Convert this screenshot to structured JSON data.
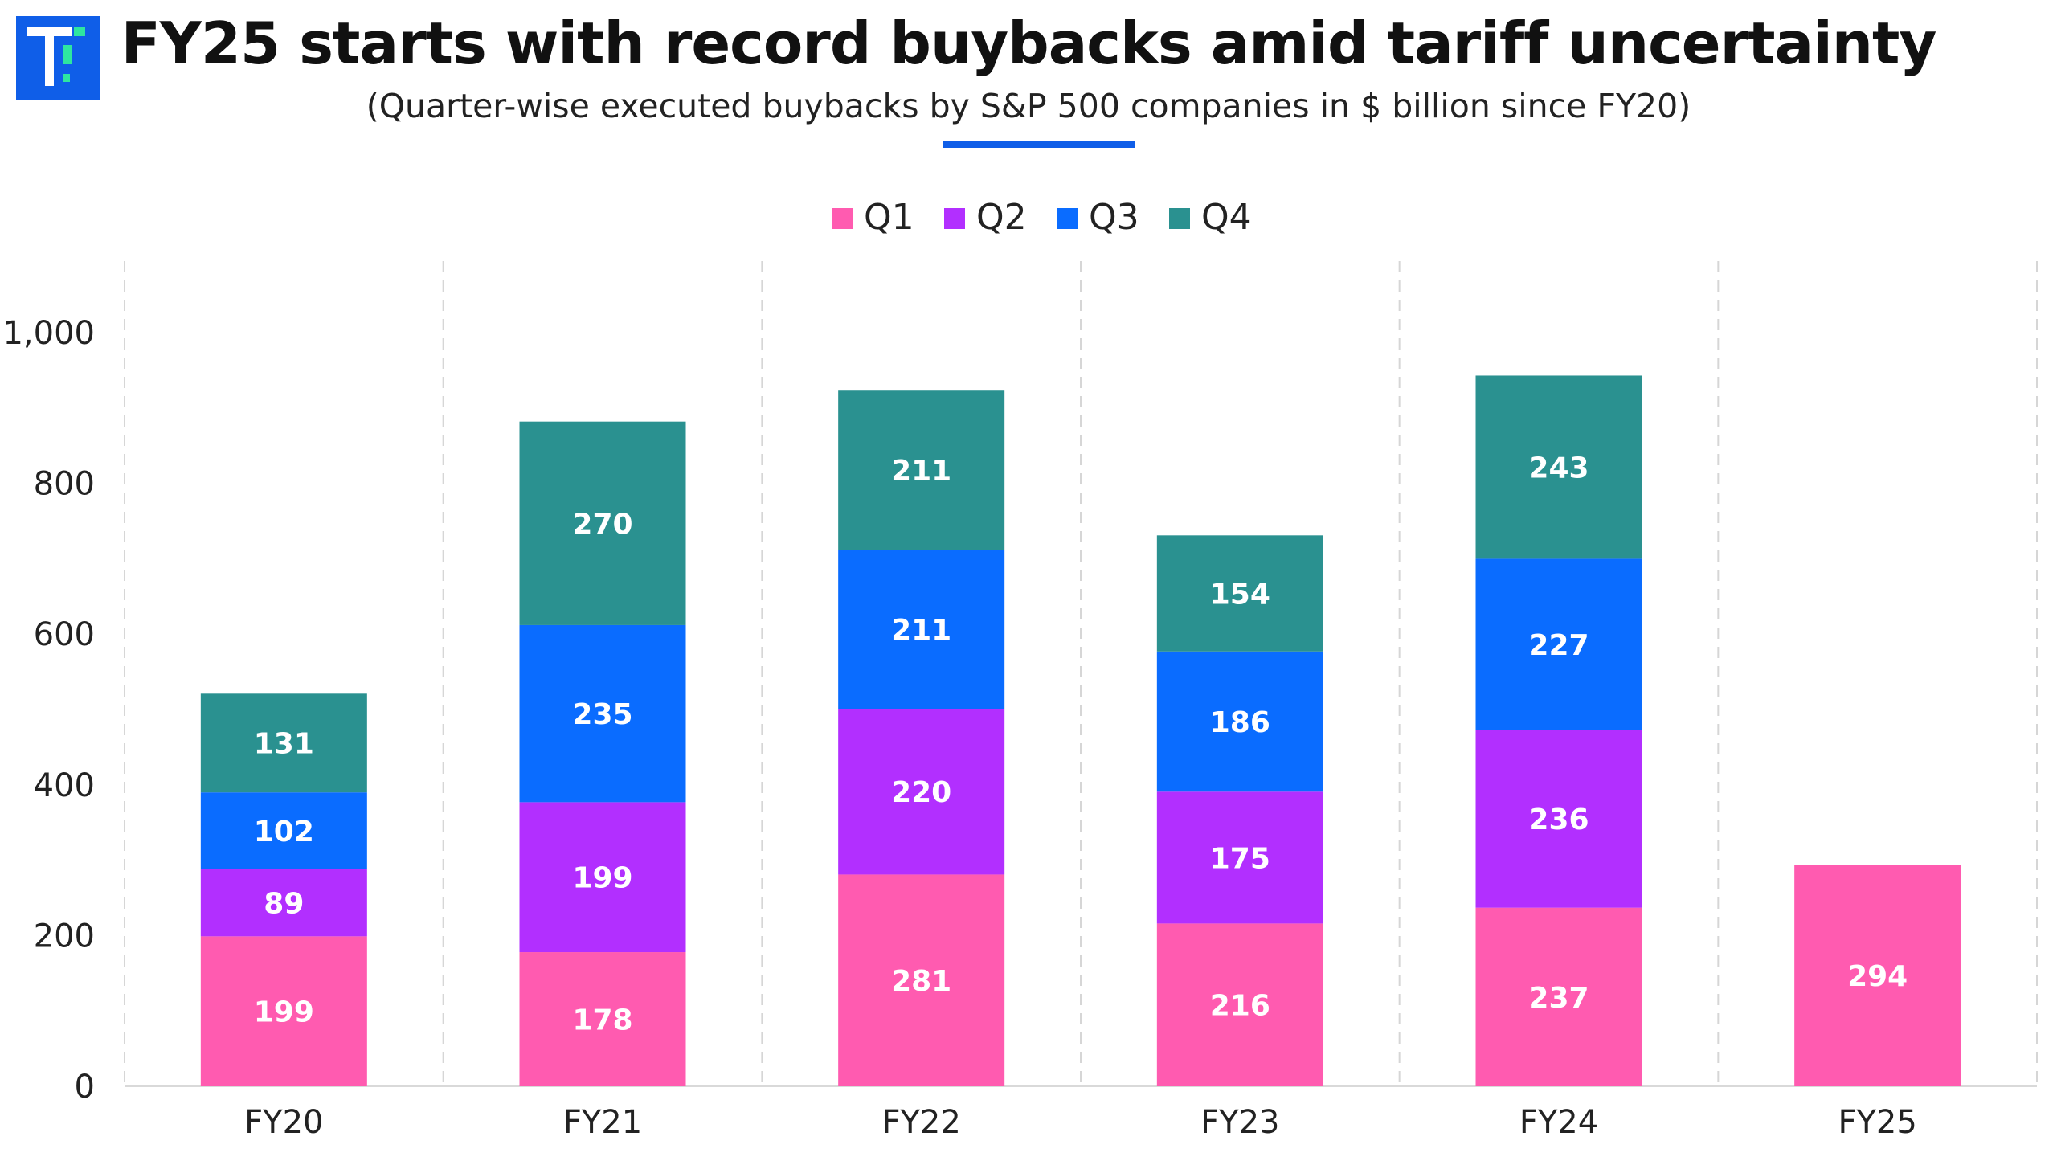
{
  "header": {
    "title": "FY25 starts with record buybacks amid tariff uncertainty",
    "subtitle": "(Quarter-wise executed buybacks by S&P 500 companies in $ billion since FY20)",
    "logo_icon": "brand-logo-icon",
    "accent_color": "#0f5ee8"
  },
  "chart_data": {
    "type": "bar",
    "stacked": true,
    "title": "FY25 starts with record buybacks amid tariff uncertainty",
    "subtitle": "(Quarter-wise executed buybacks by S&P 500 companies in $ billion since FY20)",
    "categories": [
      "FY20",
      "FY21",
      "FY22",
      "FY23",
      "FY24",
      "FY25"
    ],
    "series": [
      {
        "name": "Q1",
        "color": "#ff5bb0",
        "values": [
          199,
          178,
          281,
          216,
          237,
          294
        ]
      },
      {
        "name": "Q2",
        "color": "#b22fff",
        "values": [
          89,
          199,
          220,
          175,
          236,
          null
        ]
      },
      {
        "name": "Q3",
        "color": "#0a6cff",
        "values": [
          102,
          235,
          211,
          186,
          227,
          null
        ]
      },
      {
        "name": "Q4",
        "color": "#2a9190",
        "values": [
          131,
          270,
          211,
          154,
          243,
          null
        ]
      }
    ],
    "ylim": [
      0,
      1100
    ],
    "yticks": [
      0,
      200,
      400,
      600,
      800,
      1000
    ],
    "ytick_labels": [
      "0",
      "200",
      "400",
      "600",
      "800",
      "1,000"
    ],
    "xlabel": "",
    "ylabel": "",
    "legend_position": "top-center",
    "grid": "vertical dashed separators",
    "data_labels": true
  }
}
